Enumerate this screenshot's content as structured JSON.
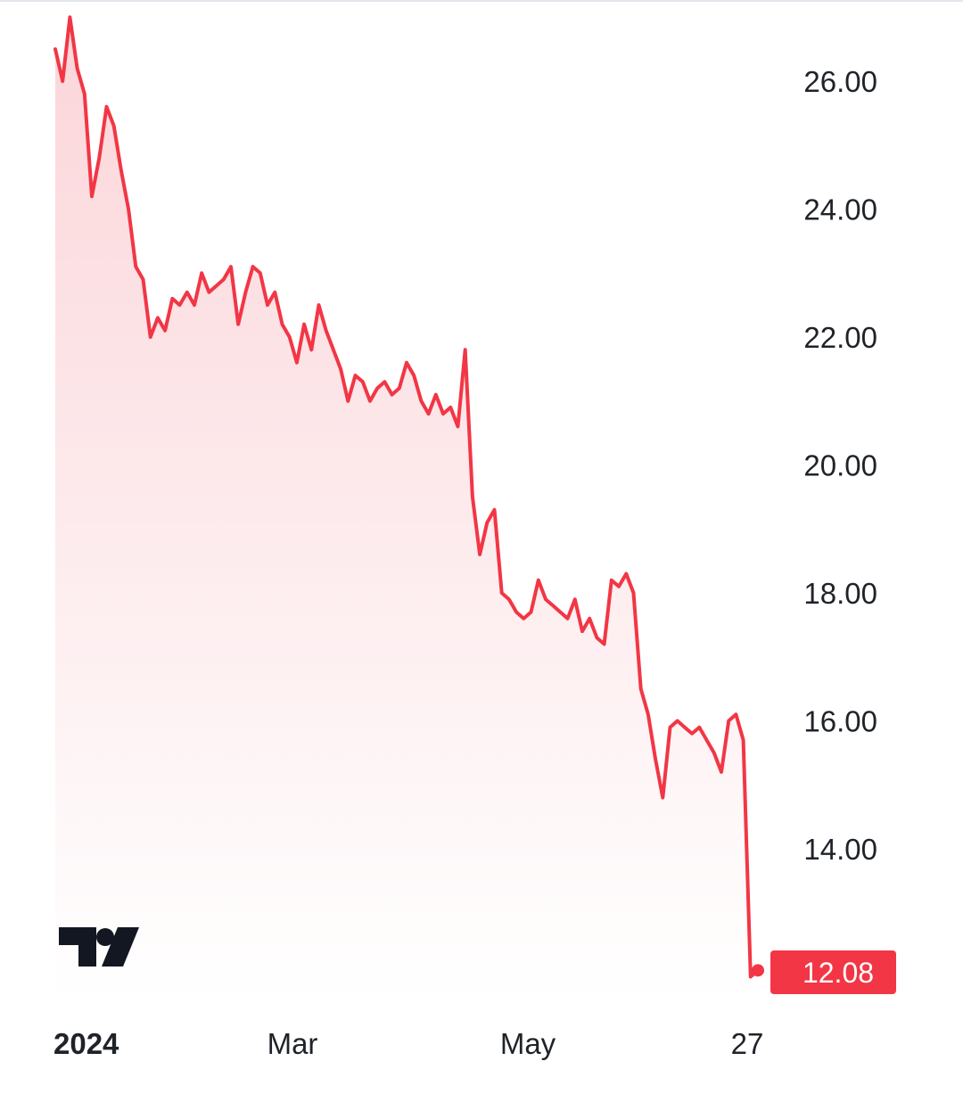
{
  "chart_data": {
    "type": "area",
    "title": "",
    "xlabel": "",
    "ylabel": "",
    "x_tick_labels": [
      "2024",
      "Mar",
      "May",
      "27"
    ],
    "y_tick_labels": [
      "26.00",
      "24.00",
      "22.00",
      "20.00",
      "18.00",
      "16.00",
      "14.00"
    ],
    "y_ticks": [
      26,
      24,
      22,
      20,
      18,
      16,
      14
    ],
    "ylim": [
      11.5,
      27.2
    ],
    "grid": false,
    "last_price_label": "12.08",
    "series": [
      {
        "values": [
          26.5,
          26.0,
          27.0,
          26.2,
          25.8,
          24.2,
          24.8,
          25.6,
          25.3,
          24.6,
          24.0,
          23.1,
          22.9,
          22.0,
          22.3,
          22.1,
          22.6,
          22.5,
          22.7,
          22.5,
          23.0,
          22.7,
          22.8,
          22.9,
          23.1,
          22.2,
          22.7,
          23.1,
          23.0,
          22.5,
          22.7,
          22.2,
          22.0,
          21.6,
          22.2,
          21.8,
          22.5,
          22.1,
          21.8,
          21.5,
          21.0,
          21.4,
          21.3,
          21.0,
          21.2,
          21.3,
          21.1,
          21.2,
          21.6,
          21.4,
          21.0,
          20.8,
          21.1,
          20.8,
          20.9,
          20.6,
          21.8,
          19.5,
          18.6,
          19.1,
          19.3,
          18.0,
          17.9,
          17.7,
          17.6,
          17.7,
          18.2,
          17.9,
          17.8,
          17.7,
          17.6,
          17.9,
          17.4,
          17.6,
          17.3,
          17.2,
          18.2,
          18.1,
          18.3,
          18.0,
          16.5,
          16.1,
          15.4,
          14.8,
          15.9,
          16.0,
          15.9,
          15.8,
          15.9,
          15.7,
          15.5,
          15.2,
          16.0,
          16.1,
          15.7,
          12.0,
          12.1
        ]
      }
    ],
    "colors": {
      "line": "#f23645",
      "fill_top": "#fbd5d9",
      "fill_bottom": "#ffffff",
      "badge": "#f23645",
      "text": "#1f2329"
    }
  },
  "logo": {
    "text": "TV"
  }
}
